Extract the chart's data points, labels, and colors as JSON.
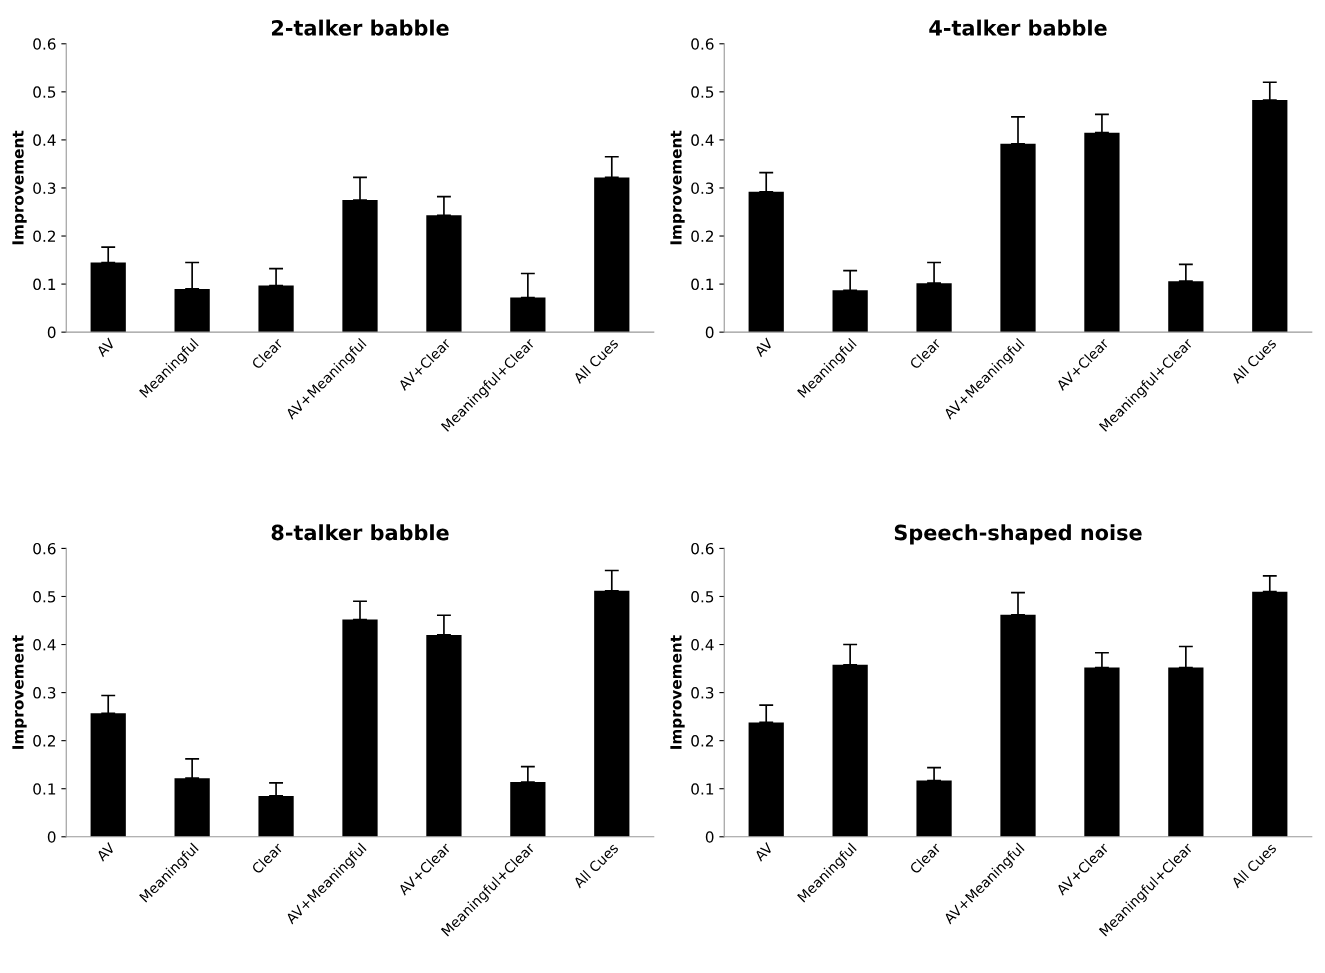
{
  "chart_data": [
    {
      "type": "bar",
      "title": "2-talker babble",
      "ylabel": "Improvement",
      "categories": [
        "AV",
        "Meaningful",
        "Clear",
        "AV+Meaningful",
        "AV+Clear",
        "Meaningful+Clear",
        "All Cues"
      ],
      "color": "#000000",
      "values": [
        0.145,
        0.09,
        0.097,
        0.275,
        0.243,
        0.072,
        0.322
      ],
      "errors": [
        [
          0.145,
          0.177
        ],
        [
          0.09,
          0.145
        ],
        [
          0.097,
          0.132
        ],
        [
          0.275,
          0.322
        ],
        [
          0.243,
          0.282
        ],
        [
          0.072,
          0.122
        ],
        [
          0.322,
          0.365
        ]
      ],
      "ylim": [
        0,
        0.6
      ],
      "yticks": [
        0,
        0.1,
        0.2,
        0.3,
        0.4,
        0.5,
        0.6
      ],
      "grid": false
    },
    {
      "type": "bar",
      "title": "4-talker babble",
      "ylabel": "Improvement",
      "categories": [
        "AV",
        "Meaningful",
        "Clear",
        "AV+Meaningful",
        "AV+Clear",
        "Meaningful+Clear",
        "All Cues"
      ],
      "color": "#000000",
      "values": [
        0.292,
        0.087,
        0.102,
        0.392,
        0.415,
        0.106,
        0.483
      ],
      "errors": [
        [
          0.292,
          0.332
        ],
        [
          0.087,
          0.128
        ],
        [
          0.102,
          0.145
        ],
        [
          0.392,
          0.448
        ],
        [
          0.415,
          0.453
        ],
        [
          0.106,
          0.141
        ],
        [
          0.483,
          0.52
        ]
      ],
      "ylim": [
        0,
        0.6
      ],
      "yticks": [
        0,
        0.1,
        0.2,
        0.3,
        0.4,
        0.5,
        0.6
      ],
      "grid": false
    },
    {
      "type": "bar",
      "title": "8-talker babble",
      "ylabel": "Improvement",
      "categories": [
        "AV",
        "Meaningful",
        "Clear",
        "AV+Meaningful",
        "AV+Clear",
        "Meaningful+Clear",
        "All Cues"
      ],
      "color": "#000000",
      "values": [
        0.257,
        0.122,
        0.085,
        0.452,
        0.42,
        0.114,
        0.512
      ],
      "errors": [
        [
          0.257,
          0.294
        ],
        [
          0.122,
          0.162
        ],
        [
          0.085,
          0.112
        ],
        [
          0.452,
          0.49
        ],
        [
          0.42,
          0.461
        ],
        [
          0.114,
          0.146
        ],
        [
          0.512,
          0.554
        ]
      ],
      "ylim": [
        0,
        0.6
      ],
      "yticks": [
        0,
        0.1,
        0.2,
        0.3,
        0.4,
        0.5,
        0.6
      ],
      "grid": false
    },
    {
      "type": "bar",
      "title": "Speech-shaped noise",
      "ylabel": "Improvement",
      "categories": [
        "AV",
        "Meaningful",
        "Clear",
        "AV+Meaningful",
        "AV+Clear",
        "Meaningful+Clear",
        "All Cues"
      ],
      "color": "#000000",
      "values": [
        0.238,
        0.358,
        0.117,
        0.462,
        0.352,
        0.352,
        0.51
      ],
      "errors": [
        [
          0.238,
          0.274
        ],
        [
          0.358,
          0.4
        ],
        [
          0.117,
          0.144
        ],
        [
          0.462,
          0.508
        ],
        [
          0.352,
          0.383
        ],
        [
          0.352,
          0.396
        ],
        [
          0.51,
          0.543
        ]
      ],
      "ylim": [
        0,
        0.6
      ],
      "yticks": [
        0,
        0.1,
        0.2,
        0.3,
        0.4,
        0.5,
        0.6
      ],
      "grid": false
    }
  ]
}
